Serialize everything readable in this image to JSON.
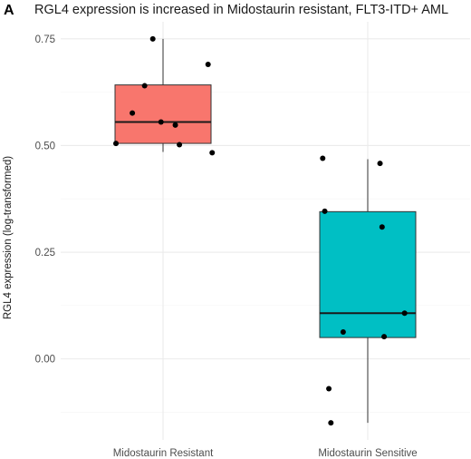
{
  "panel_label": "A",
  "chart_data": {
    "type": "boxplot",
    "title": "RGL4 expression is increased in Midostaurin resistant, FLT3-ITD+ AML",
    "xlabel": "",
    "ylabel": "RGL4 expression (log-transformed)",
    "ylim": [
      -0.19,
      0.79
    ],
    "yticks": [
      0.0,
      0.25,
      0.5,
      0.75
    ],
    "ytick_labels": [
      "0.00",
      "0.25",
      "0.50",
      "0.75"
    ],
    "grid": true,
    "legend": "none",
    "categories": [
      "Midostaurin Resistant",
      "Midostaurin Sensitive"
    ],
    "boxes": [
      {
        "name": "Midostaurin Resistant",
        "color": "#F8766D",
        "whisker_low": 0.485,
        "q1": 0.505,
        "median": 0.555,
        "q3": 0.642,
        "whisker_high": 0.75,
        "points": [
          {
            "x": -0.23,
            "y": 0.505
          },
          {
            "x": -0.15,
            "y": 0.576
          },
          {
            "x": -0.09,
            "y": 0.64
          },
          {
            "x": -0.05,
            "y": 0.75
          },
          {
            "x": -0.01,
            "y": 0.555
          },
          {
            "x": 0.06,
            "y": 0.548
          },
          {
            "x": 0.08,
            "y": 0.502
          },
          {
            "x": 0.22,
            "y": 0.69
          },
          {
            "x": 0.24,
            "y": 0.483
          }
        ]
      },
      {
        "name": "Midostaurin Sensitive",
        "color": "#00BFC4",
        "whisker_low": -0.15,
        "q1": 0.05,
        "median": 0.107,
        "q3": 0.345,
        "whisker_high": 0.468,
        "points": [
          {
            "x": -0.22,
            "y": 0.47
          },
          {
            "x": -0.21,
            "y": 0.346
          },
          {
            "x": -0.19,
            "y": -0.07
          },
          {
            "x": -0.12,
            "y": 0.063
          },
          {
            "x": -0.18,
            "y": -0.15
          },
          {
            "x": 0.06,
            "y": 0.458
          },
          {
            "x": 0.07,
            "y": 0.309
          },
          {
            "x": 0.08,
            "y": 0.052
          },
          {
            "x": 0.18,
            "y": 0.107
          }
        ]
      }
    ]
  }
}
